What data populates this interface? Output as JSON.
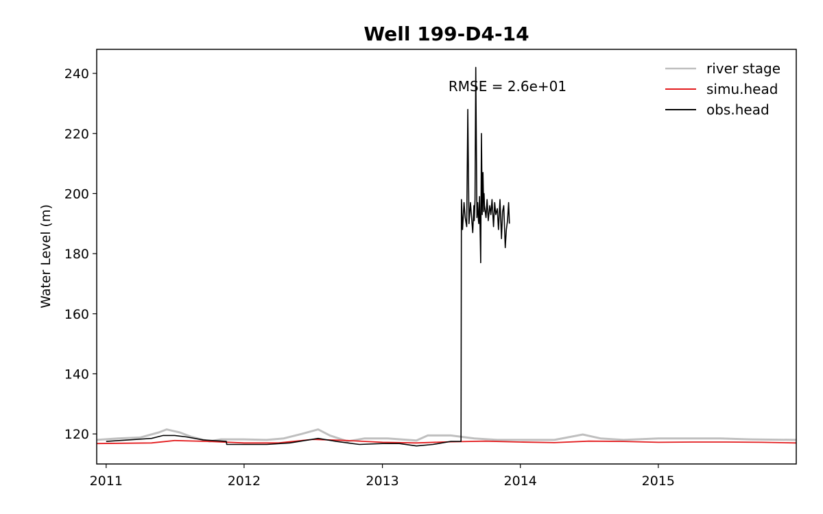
{
  "chart_data": {
    "type": "line",
    "title": "Well 199-D4-14",
    "xlabel": "",
    "ylabel": "Water Level (m)",
    "xlim": [
      "2010-12-07",
      "2016-01-01"
    ],
    "ylim": [
      110,
      248
    ],
    "x_ticks": [
      "2011",
      "2012",
      "2013",
      "2014",
      "2015"
    ],
    "y_ticks": [
      120,
      140,
      160,
      180,
      200,
      220,
      240
    ],
    "grid": false,
    "legend": {
      "placement": "top-right",
      "entries": [
        "river stage",
        "simu.head",
        "obs.head"
      ]
    },
    "annotation": "RMSE = 2.6e+01",
    "series": [
      {
        "name": "river stage",
        "color": "#bfbfbf",
        "x": [
          "2010-12-07",
          "2011-02-01",
          "2011-04-01",
          "2011-05-20",
          "2011-06-10",
          "2011-07-15",
          "2011-08-15",
          "2011-10-01",
          "2011-11-01",
          "2012-01-01",
          "2012-03-01",
          "2012-04-15",
          "2012-06-01",
          "2012-07-15",
          "2012-08-15",
          "2012-10-01",
          "2012-11-15",
          "2013-01-15",
          "2013-04-01",
          "2013-05-01",
          "2013-07-01",
          "2013-09-01",
          "2013-11-01",
          "2014-01-01",
          "2014-04-01",
          "2014-06-15",
          "2014-08-01",
          "2014-10-01",
          "2015-01-01",
          "2015-04-01",
          "2015-06-15",
          "2015-09-01",
          "2016-01-01"
        ],
        "values": [
          118,
          118.5,
          118.8,
          120.5,
          121.5,
          120.5,
          119,
          117.5,
          118.2,
          118.2,
          118,
          118.5,
          120,
          121.5,
          119.5,
          117.5,
          118.5,
          118.5,
          117.8,
          119.5,
          119.5,
          118.5,
          118,
          118,
          118,
          119.8,
          118.5,
          118,
          118.5,
          118.5,
          118.5,
          118.2,
          118
        ]
      },
      {
        "name": "simu.head",
        "color": "#e31a1c",
        "x": [
          "2010-12-07",
          "2011-05-01",
          "2011-07-01",
          "2011-10-01",
          "2012-01-01",
          "2012-04-01",
          "2012-07-01",
          "2012-10-01",
          "2013-01-01",
          "2013-04-01",
          "2013-07-01",
          "2013-10-01",
          "2014-01-01",
          "2014-04-01",
          "2014-07-01",
          "2014-10-01",
          "2015-01-01",
          "2015-04-01",
          "2015-07-01",
          "2015-10-01",
          "2016-01-01"
        ],
        "values": [
          116.8,
          117,
          117.8,
          117.5,
          117,
          117,
          118.2,
          117.8,
          117.2,
          117,
          117.4,
          117.6,
          117.3,
          117.1,
          117.6,
          117.5,
          117.2,
          117.3,
          117.3,
          117.2,
          117
        ]
      },
      {
        "name": "obs.head",
        "color": "#000000",
        "x": [
          "2011-01-01",
          "2011-03-01",
          "2011-05-01",
          "2011-06-01",
          "2011-07-01",
          "2011-08-01",
          "2011-09-15",
          "2011-11-15",
          "2011-11-16",
          "2012-01-01",
          "2012-03-01",
          "2012-05-01",
          "2012-07-15",
          "2012-09-01",
          "2012-11-01",
          "2013-01-01",
          "2013-02-15",
          "2013-04-01",
          "2013-05-15",
          "2013-07-01",
          "2013-07-28",
          "2013-07-29",
          "2013-08-01",
          "2013-08-05",
          "2013-08-08",
          "2013-08-12",
          "2013-08-15",
          "2013-08-18",
          "2013-08-22",
          "2013-08-25",
          "2013-08-28",
          "2013-08-31",
          "2013-09-01",
          "2013-09-03",
          "2013-09-05",
          "2013-09-08",
          "2013-09-10",
          "2013-09-12",
          "2013-09-13",
          "2013-09-15",
          "2013-09-18",
          "2013-09-20",
          "2013-09-22",
          "2013-09-24",
          "2013-09-26",
          "2013-09-27",
          "2013-09-28",
          "2013-10-02",
          "2013-10-05",
          "2013-10-08",
          "2013-10-12",
          "2013-10-15",
          "2013-10-18",
          "2013-10-22",
          "2013-10-25",
          "2013-10-28",
          "2013-11-01",
          "2013-11-04",
          "2013-11-08",
          "2013-11-12",
          "2013-11-15",
          "2013-11-18",
          "2013-11-22",
          "2013-11-25",
          "2013-11-28",
          "2013-12-01",
          "2013-12-03"
        ],
        "values": [
          117.5,
          118,
          118.5,
          119.5,
          119.5,
          119,
          118,
          117.5,
          116.5,
          116.5,
          116.5,
          117,
          118.5,
          117.5,
          116.5,
          116.8,
          116.8,
          116,
          116.5,
          117.5,
          117.5,
          198,
          188,
          197,
          192,
          189,
          228,
          190,
          197,
          192,
          187,
          196,
          191,
          198,
          242,
          192,
          197,
          191,
          190,
          199,
          177,
          220,
          193,
          207,
          194,
          200,
          196,
          192,
          198,
          191,
          196,
          193,
          198,
          189,
          197,
          193,
          195,
          188,
          198,
          185,
          194,
          196,
          182,
          188,
          191,
          197,
          190
        ]
      }
    ]
  }
}
